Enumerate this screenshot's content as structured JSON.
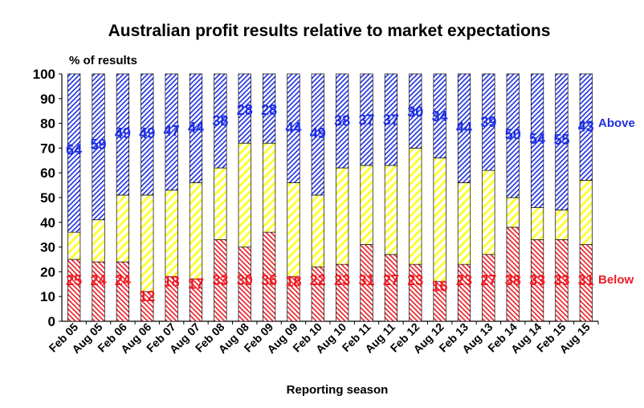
{
  "colors": {
    "above": "#1f2fe0",
    "inline": "#ffff33",
    "below": "#ee1b24"
  },
  "chart_data": {
    "type": "bar",
    "stacked": true,
    "title": "Australian profit results relative to market expectations",
    "unit_label": "% of results",
    "xlabel": "Reporting season",
    "ylabel": "",
    "ylim": [
      0,
      100
    ],
    "yticks": [
      0,
      10,
      20,
      30,
      40,
      50,
      60,
      70,
      80,
      90,
      100
    ],
    "categories": [
      "Feb 05",
      "Aug 05",
      "Feb 06",
      "Aug 06",
      "Feb 07",
      "Aug 07",
      "Feb 08",
      "Aug 08",
      "Feb 09",
      "Aug 09",
      "Feb 10",
      "Aug 10",
      "Feb 11",
      "Aug 11",
      "Feb 12",
      "Aug 12",
      "Feb 13",
      "Aug 13",
      "Feb 14",
      "Aug 14",
      "Feb 15",
      "Aug 15"
    ],
    "series": [
      {
        "name": "Below",
        "values": [
          25,
          24,
          24,
          12,
          18,
          17,
          33,
          30,
          36,
          18,
          22,
          23,
          31,
          27,
          23,
          16,
          23,
          27,
          38,
          33,
          33,
          31
        ]
      },
      {
        "values": [
          11,
          17,
          27,
          39,
          35,
          39,
          29,
          42,
          36,
          38,
          29,
          39,
          32,
          36,
          47,
          50,
          33,
          34,
          12,
          13,
          12,
          26
        ]
      },
      {
        "name": "Above",
        "values": [
          64,
          59,
          49,
          49,
          47,
          44,
          38,
          28,
          28,
          44,
          49,
          38,
          37,
          37,
          30,
          34,
          44,
          39,
          50,
          54,
          55,
          43
        ]
      }
    ],
    "grid": false,
    "legend": "right"
  }
}
